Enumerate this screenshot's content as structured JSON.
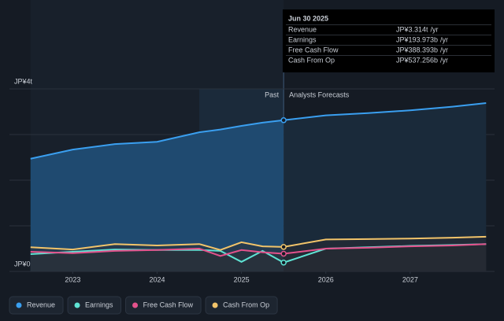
{
  "chart_data": {
    "type": "line",
    "x": [
      2022.5,
      2023,
      2023.5,
      2024,
      2024.5,
      2024.75,
      2025,
      2025.25,
      2025.5,
      2026,
      2026.5,
      2027,
      2027.5,
      2027.9
    ],
    "series": [
      {
        "name": "Revenue",
        "color": "#3a9ff0",
        "values": [
          2.47,
          2.67,
          2.79,
          2.84,
          3.05,
          3.11,
          3.19,
          3.26,
          3.314,
          3.42,
          3.47,
          3.53,
          3.61,
          3.69
        ]
      },
      {
        "name": "Earnings",
        "color": "#5fe3d4",
        "values": [
          0.38,
          0.43,
          0.48,
          0.47,
          0.47,
          0.45,
          0.21,
          0.45,
          0.193973,
          0.5,
          0.53,
          0.56,
          0.58,
          0.6
        ]
      },
      {
        "name": "Free Cash Flow",
        "color": "#e3528c",
        "values": [
          0.43,
          0.4,
          0.45,
          0.47,
          0.5,
          0.34,
          0.47,
          0.42,
          0.388393,
          0.5,
          0.52,
          0.55,
          0.57,
          0.6
        ]
      },
      {
        "name": "Cash From Op",
        "color": "#f2c46a",
        "values": [
          0.53,
          0.48,
          0.6,
          0.57,
          0.6,
          0.47,
          0.64,
          0.55,
          0.537256,
          0.7,
          0.71,
          0.72,
          0.74,
          0.76
        ]
      }
    ],
    "xlim": [
      2022.25,
      2028.0
    ],
    "xticks": [
      2023,
      2024,
      2025,
      2026,
      2027
    ],
    "ylim": [
      0,
      4
    ],
    "yticks": [
      {
        "value": 0,
        "label": "JP¥0"
      },
      {
        "value": 4,
        "label": "JP¥4t"
      }
    ],
    "ygrid": [
      1,
      2,
      3
    ],
    "highlight_start": 2024.5,
    "forecast_start": 2025.5,
    "past_label": "Past",
    "forecast_label": "Analysts Forecasts",
    "tooltip": {
      "title": "Jun 30 2025",
      "rows": [
        {
          "label": "Revenue",
          "value": 3.314,
          "value_label": "JP¥3.314t",
          "unit": "/yr"
        },
        {
          "label": "Earnings",
          "value": 0.193973,
          "value_label": "JP¥193.973b",
          "unit": "/yr"
        },
        {
          "label": "Free Cash Flow",
          "value": 0.388393,
          "value_label": "JP¥388.393b",
          "unit": "/yr"
        },
        {
          "label": "Cash From Op",
          "value": 0.537256,
          "value_label": "JP¥537.256b",
          "unit": "/yr"
        }
      ]
    }
  }
}
